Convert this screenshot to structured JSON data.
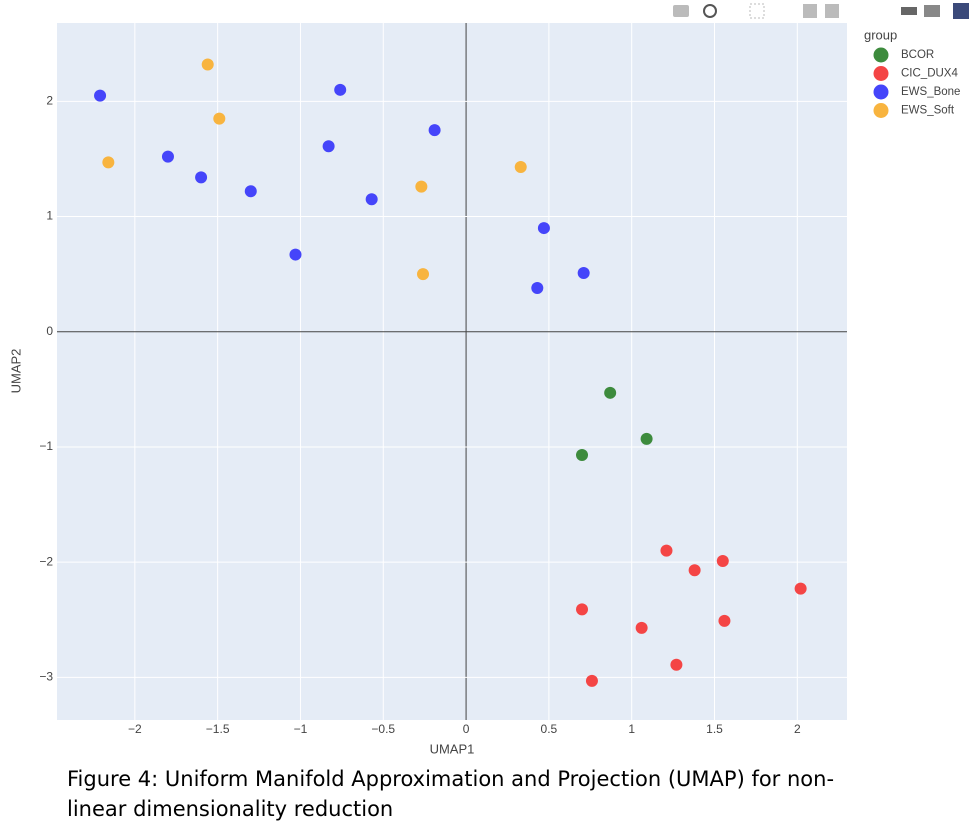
{
  "chart_data": {
    "type": "scatter",
    "xlabel": "UMAP1",
    "ylabel": "UMAP2",
    "legend_title": "group",
    "legend": "right",
    "grid": true,
    "caption": "Figure 4: Uniform Manifold Approximation and Projection (UMAP) for non-linear dimensionality reduction",
    "xlim": [
      -2.47,
      2.3
    ],
    "ylim": [
      -3.37,
      2.68
    ],
    "xticks": [
      {
        "value": -2,
        "label": "−2"
      },
      {
        "value": -1.5,
        "label": "−1.5"
      },
      {
        "value": -1,
        "label": "−1"
      },
      {
        "value": -0.5,
        "label": "−0.5"
      },
      0,
      0.5,
      1,
      1.5,
      2
    ],
    "yticks": [
      {
        "value": -3,
        "label": "−3"
      },
      {
        "value": -2,
        "label": "−2"
      },
      {
        "value": -1,
        "label": "−1"
      },
      0,
      1,
      2
    ],
    "series": [
      {
        "name": "BCOR",
        "color": "#3d8b3d",
        "x": [
          0.87,
          1.09,
          0.7
        ],
        "y": [
          -0.53,
          -0.93,
          -1.07
        ]
      },
      {
        "name": "CIC_DUX4",
        "color": "#f44545",
        "x": [
          1.21,
          1.55,
          1.38,
          2.02,
          0.7,
          1.56,
          1.06,
          1.27,
          0.76
        ],
        "y": [
          -1.9,
          -1.99,
          -2.07,
          -2.23,
          -2.41,
          -2.51,
          -2.57,
          -2.89,
          -3.03
        ]
      },
      {
        "name": "EWS_Bone",
        "color": "#4545fa",
        "x": [
          -2.21,
          -0.76,
          -0.19,
          -1.8,
          -0.83,
          -1.6,
          -1.3,
          -0.57,
          -1.03,
          0.47,
          0.71,
          0.43
        ],
        "y": [
          2.05,
          2.1,
          1.75,
          1.52,
          1.61,
          1.34,
          1.22,
          1.15,
          0.67,
          0.9,
          0.51,
          0.38
        ]
      },
      {
        "name": "EWS_Soft",
        "color": "#f8b43f",
        "x": [
          -1.56,
          -1.49,
          -2.16,
          0.33,
          -0.27,
          -0.26
        ],
        "y": [
          2.32,
          1.85,
          1.47,
          1.43,
          1.26,
          0.5
        ]
      }
    ]
  }
}
